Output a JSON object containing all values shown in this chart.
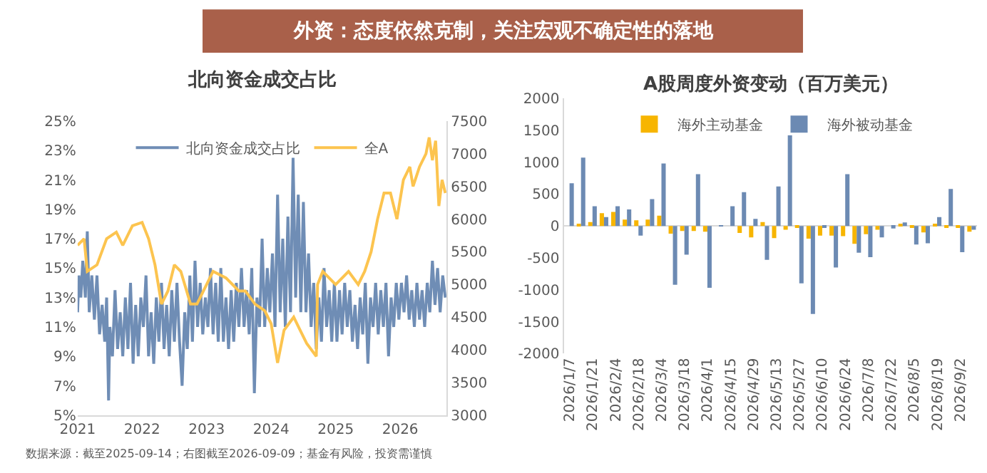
{
  "chart_data": [
    {
      "type": "line",
      "title": "北向资金成交占比",
      "xlim": [
        2021,
        2026.72
      ],
      "xticks": [
        2021,
        2022,
        2023,
        2024,
        2025,
        2026
      ],
      "ylim": [
        5,
        25
      ],
      "yticks": [
        {
          "value": 5,
          "label": "5%"
        },
        {
          "value": 7,
          "label": "7%"
        },
        {
          "value": 9,
          "label": "9%"
        },
        {
          "value": 11,
          "label": "11%"
        },
        {
          "value": 13,
          "label": "13%"
        },
        {
          "value": 15,
          "label": "15%"
        },
        {
          "value": 17,
          "label": "17%"
        },
        {
          "value": 19,
          "label": "19%"
        },
        {
          "value": 21,
          "label": "21%"
        },
        {
          "value": 23,
          "label": "23%"
        },
        {
          "value": 25,
          "label": "25%"
        }
      ],
      "y2lim": [
        3000,
        7500
      ],
      "y2ticks": [
        3000,
        3500,
        4000,
        4500,
        5000,
        5500,
        6000,
        6500,
        7000,
        7500
      ],
      "legend": "top",
      "annotations": [
        "外资：态度依然克制，关注宏观不确定性的落地",
        "数据来源：截至2025-09-14；右图截至2026-09-09；基金有风险，投资需谨慎"
      ],
      "series": [
        {
          "name": "北向资金成交占比",
          "color": "#6f8db5",
          "x": [
            2021.0,
            2021.02,
            2021.05,
            2021.08,
            2021.12,
            2021.15,
            2021.18,
            2021.22,
            2021.26,
            2021.3,
            2021.34,
            2021.38,
            2021.42,
            2021.45,
            2021.48,
            2021.5,
            2021.54,
            2021.58,
            2021.62,
            2021.66,
            2021.7,
            2021.74,
            2021.78,
            2021.82,
            2021.86,
            2021.9,
            2021.94,
            2021.98,
            2022.02,
            2022.06,
            2022.1,
            2022.14,
            2022.18,
            2022.22,
            2022.26,
            2022.3,
            2022.34,
            2022.38,
            2022.42,
            2022.46,
            2022.5,
            2022.54,
            2022.58,
            2022.62,
            2022.66,
            2022.7,
            2022.74,
            2022.78,
            2022.82,
            2022.86,
            2022.9,
            2022.94,
            2022.98,
            2023.02,
            2023.06,
            2023.1,
            2023.14,
            2023.18,
            2023.22,
            2023.26,
            2023.3,
            2023.34,
            2023.38,
            2023.42,
            2023.46,
            2023.5,
            2023.54,
            2023.58,
            2023.62,
            2023.66,
            2023.7,
            2023.74,
            2023.78,
            2023.82,
            2023.86,
            2023.9,
            2023.94,
            2023.98,
            2024.02,
            2024.06,
            2024.1,
            2024.14,
            2024.18,
            2024.22,
            2024.26,
            2024.3,
            2024.34,
            2024.38,
            2024.42,
            2024.46,
            2024.5,
            2024.54,
            2024.58,
            2024.62,
            2024.66,
            2024.7,
            2024.74,
            2024.78,
            2024.82,
            2024.86,
            2024.9,
            2024.94,
            2024.98,
            2025.02,
            2025.06,
            2025.1,
            2025.14,
            2025.18,
            2025.22,
            2025.26,
            2025.3,
            2025.34,
            2025.38,
            2025.42,
            2025.46,
            2025.5,
            2025.54,
            2025.58,
            2025.62,
            2025.66,
            2025.7,
            2025.74,
            2025.78,
            2025.82,
            2025.86,
            2025.9,
            2025.94,
            2025.98,
            2026.02,
            2026.06,
            2026.1,
            2026.14,
            2026.18,
            2026.22,
            2026.26,
            2026.3,
            2026.34,
            2026.38,
            2026.42,
            2026.46,
            2026.5,
            2026.54,
            2026.58,
            2026.62,
            2026.66,
            2026.7
          ],
          "values": [
            12,
            14.5,
            13,
            15.5,
            13,
            17.5,
            12,
            14.5,
            11.5,
            14.5,
            10.5,
            12.5,
            10,
            13,
            6,
            11,
            9,
            13.5,
            9.5,
            12,
            9,
            13,
            9.5,
            14,
            8.5,
            12.5,
            9,
            13,
            11,
            14.5,
            9,
            12,
            8.5,
            13,
            10,
            14,
            9.5,
            12.5,
            9,
            13.5,
            10,
            14,
            10,
            7,
            12,
            9.5,
            14.5,
            10,
            15.5,
            11,
            14,
            10.5,
            13,
            11,
            15,
            10.5,
            14,
            10,
            15,
            10,
            13,
            9.5,
            13.5,
            10,
            14,
            11,
            15,
            11,
            13.5,
            10.5,
            15,
            6.5,
            13,
            11,
            17,
            11,
            15,
            12,
            16,
            11,
            20,
            12,
            17,
            11,
            18.5,
            12,
            22.5,
            13,
            20,
            12,
            19.5,
            12,
            16,
            11,
            14,
            9.5,
            13,
            10,
            15,
            11,
            13.5,
            10,
            14,
            10,
            13.5,
            10.5,
            14,
            11,
            13.5,
            10,
            12.5,
            9.5,
            13,
            10.5,
            14,
            8.5,
            13,
            11,
            14,
            10.5,
            13.5,
            11,
            14,
            9,
            13,
            11,
            14,
            11.5,
            14,
            12,
            14.5,
            11.5,
            13.5,
            11,
            14,
            11.5,
            13.5,
            11,
            14,
            12,
            15.5,
            12.5,
            15,
            12,
            14.5,
            13
          ]
        },
        {
          "name": "全A",
          "color": "#fcc44f",
          "axis": "y2",
          "x": [
            2021.0,
            2021.1,
            2021.15,
            2021.3,
            2021.45,
            2021.6,
            2021.7,
            2021.85,
            2022.0,
            2022.1,
            2022.2,
            2022.3,
            2022.4,
            2022.5,
            2022.6,
            2022.75,
            2022.85,
            2023.0,
            2023.1,
            2023.3,
            2023.5,
            2023.6,
            2023.75,
            2023.9,
            2024.0,
            2024.1,
            2024.2,
            2024.35,
            2024.45,
            2024.55,
            2024.7,
            2024.72,
            2024.8,
            2025.0,
            2025.2,
            2025.35,
            2025.45,
            2025.55,
            2025.65,
            2025.75,
            2025.85,
            2025.95,
            2026.05,
            2026.15,
            2026.2,
            2026.3,
            2026.4,
            2026.45,
            2026.5,
            2026.55,
            2026.6,
            2026.65,
            2026.7
          ],
          "values": [
            5600,
            5700,
            5200,
            5300,
            5700,
            5800,
            5600,
            5900,
            5950,
            5700,
            5300,
            4700,
            4900,
            5300,
            5200,
            4700,
            4700,
            5000,
            5200,
            5100,
            4900,
            4900,
            4700,
            4600,
            4400,
            3800,
            4300,
            4500,
            4300,
            4100,
            3900,
            5000,
            5200,
            5000,
            5200,
            5000,
            5200,
            5500,
            6000,
            6400,
            6400,
            6000,
            6600,
            6800,
            6500,
            6800,
            7000,
            7250,
            6900,
            7200,
            6200,
            6600,
            6400
          ]
        }
      ]
    },
    {
      "type": "bar",
      "title": "A股周度外资变动（百万美元）",
      "legend": "top",
      "categories": [
        "2026/1/7",
        null,
        "2026/1/21",
        null,
        "2026/2/4",
        null,
        "2026/2/18",
        null,
        "2026/3/4",
        null,
        "2026/3/18",
        null,
        "2026/4/1",
        null,
        "2026/4/15",
        null,
        "2026/4/29",
        null,
        "2026/5/13",
        null,
        "2026/5/27",
        null,
        "2026/6/10",
        null,
        "2026/6/24",
        null,
        "2026/7/8",
        null,
        "2026/7/22",
        null,
        "2026/8/5",
        null,
        "2026/8/19",
        null,
        "2026/9/2",
        null
      ],
      "ylim": [
        -2000,
        2000
      ],
      "yticks": [
        -2000,
        -1500,
        -1000,
        -500,
        0,
        500,
        1000,
        1500,
        2000
      ],
      "series": [
        {
          "name": "海外主动基金",
          "color": "#f7b500",
          "values": [
            0,
            20,
            60,
            200,
            220,
            100,
            90,
            100,
            160,
            -120,
            -80,
            -80,
            -90,
            0,
            0,
            -110,
            -180,
            60,
            -190,
            -60,
            -20,
            -200,
            -150,
            -150,
            -160,
            -280,
            -130,
            -60,
            0,
            30,
            -20,
            -100,
            30,
            -20,
            -20,
            -90
          ]
        },
        {
          "name": "海外被动基金",
          "color": "#6c8ab3",
          "values": [
            670,
            1070,
            310,
            140,
            310,
            260,
            -150,
            420,
            980,
            -920,
            -450,
            810,
            -970,
            10,
            310,
            530,
            110,
            -530,
            620,
            1420,
            -900,
            -1380,
            -20,
            -650,
            810,
            -420,
            -490,
            -180,
            -40,
            55,
            -290,
            -270,
            140,
            580,
            -410,
            -60
          ]
        }
      ]
    }
  ]
}
